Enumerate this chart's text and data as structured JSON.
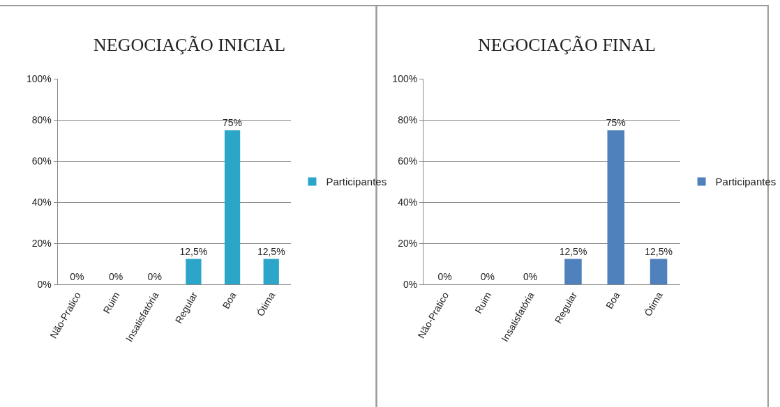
{
  "chart_data": [
    {
      "type": "bar",
      "title": "NEGOCIAÇÃO INICIAL",
      "categories": [
        "Não-Pratico",
        "Ruim",
        "Insatisfatória",
        "Regular",
        "Boa",
        "Ótima"
      ],
      "series": [
        {
          "name": "Participantes",
          "color": "#2ba6c8",
          "values": [
            0,
            0,
            0,
            12.5,
            75,
            12.5
          ],
          "value_labels": [
            "0%",
            "0%",
            "0%",
            "12,5%",
            "75%",
            "12,5%"
          ]
        }
      ],
      "ylim": [
        0,
        100
      ],
      "yticks": [
        {
          "value": 0,
          "label": "0%"
        },
        {
          "value": 20,
          "label": "20%"
        },
        {
          "value": 40,
          "label": "40%"
        },
        {
          "value": 60,
          "label": "60%"
        },
        {
          "value": 80,
          "label": "80%"
        },
        {
          "value": 100,
          "label": "100%"
        }
      ],
      "grid": "y",
      "legend": "right"
    },
    {
      "type": "bar",
      "title": "NEGOCIAÇÃO FINAL",
      "categories": [
        "Não-Pratico",
        "Ruim",
        "Insatisfatória",
        "Regular",
        "Boa",
        "Ótima"
      ],
      "series": [
        {
          "name": "Participantes",
          "color": "#4f81bd",
          "values": [
            0,
            0,
            0,
            12.5,
            75,
            12.5
          ],
          "value_labels": [
            "0%",
            "0%",
            "0%",
            "12,5%",
            "75%",
            "12,5%"
          ]
        }
      ],
      "ylim": [
        0,
        100
      ],
      "yticks": [
        {
          "value": 0,
          "label": "0%"
        },
        {
          "value": 20,
          "label": "20%"
        },
        {
          "value": 40,
          "label": "40%"
        },
        {
          "value": 60,
          "label": "60%"
        },
        {
          "value": 80,
          "label": "80%"
        },
        {
          "value": 100,
          "label": "100%"
        }
      ],
      "grid": "y",
      "legend": "right"
    }
  ]
}
